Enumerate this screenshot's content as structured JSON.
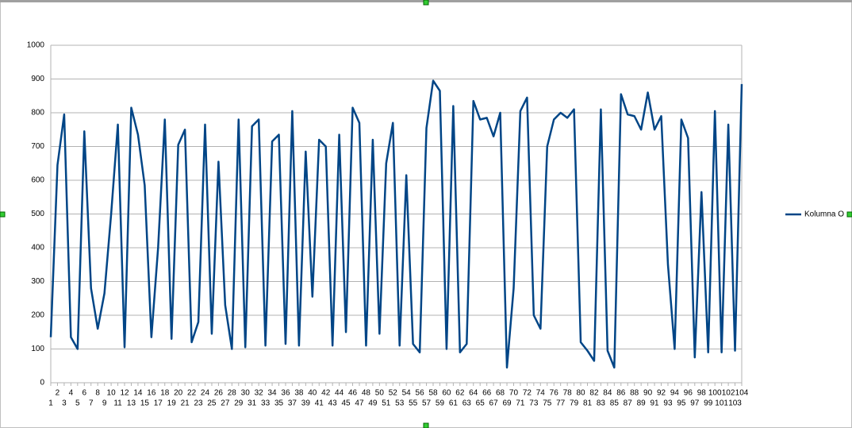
{
  "chart_data": {
    "type": "line",
    "categories": [
      1,
      2,
      3,
      4,
      5,
      6,
      7,
      8,
      9,
      10,
      11,
      12,
      13,
      14,
      15,
      16,
      17,
      18,
      19,
      20,
      21,
      22,
      23,
      24,
      25,
      26,
      27,
      28,
      29,
      30,
      31,
      32,
      33,
      34,
      35,
      36,
      37,
      38,
      39,
      40,
      41,
      42,
      43,
      44,
      45,
      46,
      47,
      48,
      49,
      50,
      51,
      52,
      53,
      54,
      55,
      56,
      57,
      58,
      59,
      60,
      61,
      62,
      63,
      64,
      65,
      66,
      67,
      68,
      69,
      70,
      71,
      72,
      73,
      74,
      75,
      76,
      77,
      78,
      79,
      80,
      81,
      82,
      83,
      84,
      85,
      86,
      87,
      88,
      89,
      90,
      91,
      92,
      93,
      94,
      95,
      96,
      97,
      98,
      99,
      100,
      101,
      102,
      103,
      104
    ],
    "series": [
      {
        "name": "Kolumna O",
        "color": "#004586",
        "values": [
          135,
          645,
          795,
          135,
          100,
          745,
          280,
          160,
          265,
          500,
          765,
          105,
          815,
          735,
          585,
          135,
          400,
          780,
          130,
          705,
          750,
          120,
          180,
          765,
          145,
          655,
          230,
          100,
          780,
          105,
          760,
          780,
          110,
          715,
          735,
          115,
          805,
          110,
          685,
          255,
          720,
          700,
          110,
          735,
          150,
          815,
          770,
          110,
          720,
          145,
          650,
          770,
          110,
          615,
          115,
          90,
          755,
          895,
          865,
          100,
          820,
          90,
          115,
          835,
          780,
          785,
          730,
          800,
          45,
          280,
          805,
          845,
          200,
          160,
          700,
          780,
          800,
          785,
          810,
          120,
          95,
          65,
          810,
          95,
          45,
          855,
          795,
          790,
          750,
          860,
          750,
          790,
          350,
          100,
          780,
          725,
          75,
          565,
          90,
          805,
          90,
          765,
          95,
          885
        ]
      }
    ],
    "ylim": [
      0,
      1000
    ],
    "yticks": [
      0,
      100,
      200,
      300,
      400,
      500,
      600,
      700,
      800,
      900,
      1000
    ],
    "grid": true,
    "legend": "right"
  }
}
